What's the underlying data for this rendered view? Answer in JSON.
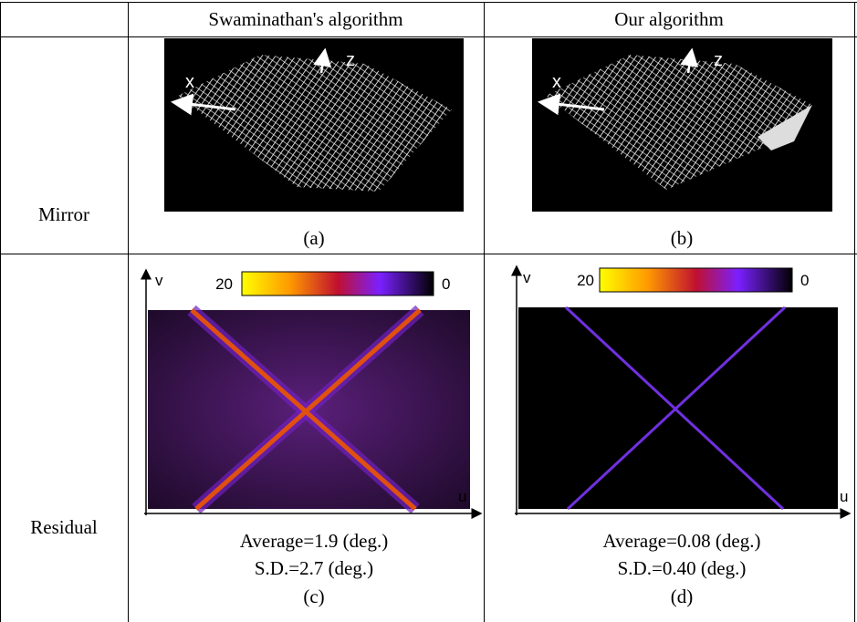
{
  "table": {
    "columns": [
      "Swaminathan's algorithm",
      "Our algorithm"
    ],
    "rows": [
      {
        "label": "Mirror",
        "cells": [
          {
            "axes": [
              "x",
              "z"
            ],
            "caption": "(a)"
          },
          {
            "axes": [
              "x",
              "z"
            ],
            "caption": "(b)"
          }
        ]
      },
      {
        "label": "Residual",
        "cells": [
          {
            "colorbar": [
              20,
              0
            ],
            "axes": [
              "v",
              "u"
            ],
            "stats": [
              "Average=1.9 (deg.)",
              "S.D.=2.7 (deg.)"
            ],
            "caption": "(c)"
          },
          {
            "colorbar": [
              20,
              0
            ],
            "axes": [
              "v",
              "u"
            ],
            "stats": [
              "Average=0.08 (deg.)",
              "S.D.=0.40 (deg.)"
            ],
            "caption": "(d)"
          }
        ]
      }
    ]
  }
}
